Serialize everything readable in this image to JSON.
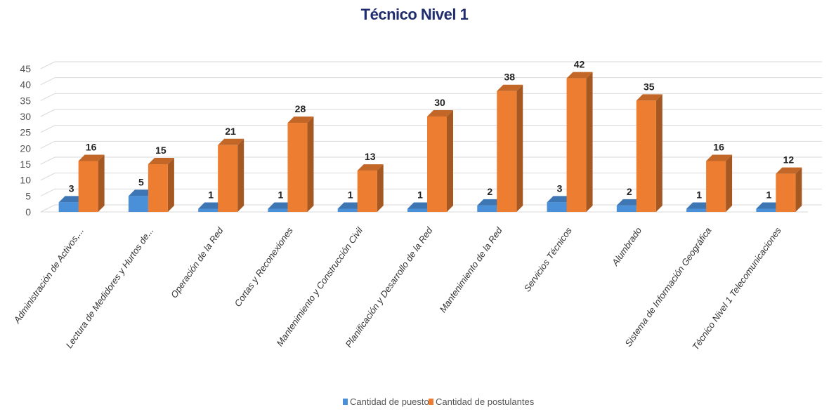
{
  "chart_data": {
    "type": "bar",
    "title": "Técnico Nivel 1",
    "categories": [
      "Administración de Activos,...",
      "Lectura de Medidores y Hurtos de...",
      "Operación de la Red",
      "Cortas y Reconexiones",
      "Mantenimiento y Construcción Civil",
      "Planificación y Desarrollo de la Red",
      "Mantenimiento de la Red",
      "Servicios Técnicos",
      "Alumbrado",
      "Sistema de Información Geográfica",
      "Técnico Nivel 1 Telecomunicaciones"
    ],
    "series": [
      {
        "name": "Cantidad de puestos",
        "color": "#4a90d9",
        "values": [
          3,
          5,
          1,
          1,
          1,
          1,
          2,
          3,
          2,
          1,
          1
        ]
      },
      {
        "name": "Cantidad de postulantes",
        "color": "#ed7d31",
        "values": [
          16,
          15,
          21,
          28,
          13,
          30,
          38,
          42,
          35,
          16,
          12
        ]
      }
    ],
    "y_ticks": [
      0,
      5,
      10,
      15,
      20,
      25,
      30,
      35,
      40,
      45
    ],
    "ylim": [
      0,
      45
    ],
    "grid": true,
    "legend_position": "bottom",
    "xlabel": "",
    "ylabel": ""
  }
}
